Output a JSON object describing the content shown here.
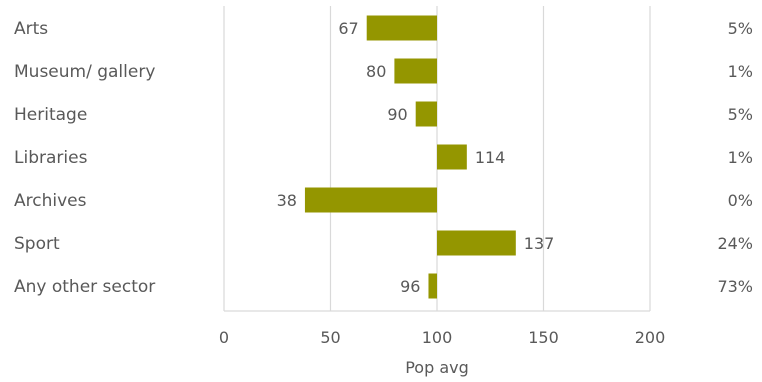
{
  "chart_data": {
    "type": "bar",
    "orientation": "horizontal",
    "categories": [
      "Arts",
      "Museum/ gallery",
      "Heritage",
      "Libraries",
      "Archives",
      "Sport",
      "Any other sector"
    ],
    "values": [
      67,
      80,
      90,
      114,
      38,
      137,
      96
    ],
    "baseline": 100,
    "percent_labels": [
      "5%",
      "1%",
      "5%",
      "1%",
      "0%",
      "24%",
      "73%"
    ],
    "xlabel": "Pop avg",
    "xlim": [
      0,
      200
    ],
    "xticks": [
      0,
      50,
      100,
      150,
      200
    ],
    "grid": true,
    "bar_color": "#949600",
    "grid_color": "#d9d9d9"
  }
}
